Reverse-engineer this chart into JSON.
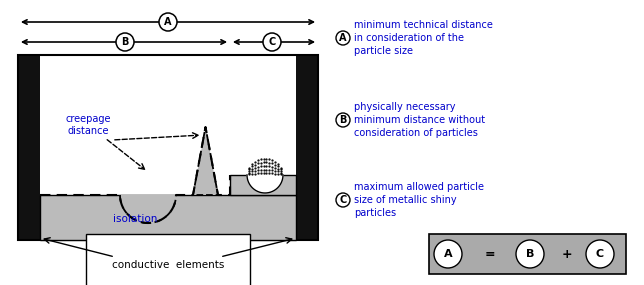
{
  "bg_color": "#ffffff",
  "text_color_blue": "#0000cc",
  "text_color_black": "#000000",
  "iso_color": "#bbbbbb",
  "particle_color": "#aaaaaa",
  "electrode_color": "#111111",
  "formula_box_color": "#aaaaaa",
  "legend_A": "minimum technical distance\nin consideration of the\nparticle size",
  "legend_B": "physically necessary\nminimum distance without\nconsideration of particles",
  "legend_C": "maximum allowed particle\nsize of metallic shiny\nparticles"
}
